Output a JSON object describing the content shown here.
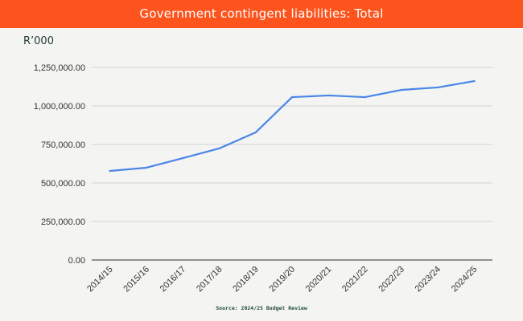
{
  "header": {
    "title": "Government contingent liabilities: Total"
  },
  "unit_label": "R’000",
  "source": "Source: 2024/25 Budget Review",
  "colors": {
    "header_bg": "#fd541e",
    "line": "#4a86e8",
    "grid": "#dddddd",
    "background": "#f4f4f2"
  },
  "chart_data": {
    "type": "line",
    "title": "Government contingent liabilities: Total",
    "ylabel": "R’000",
    "xlabel": "",
    "categories": [
      "2014/15",
      "2015/16",
      "2016/17",
      "2017/18",
      "2018/19",
      "2019/20",
      "2020/21",
      "2021/22",
      "2022/23",
      "2023/24",
      "2024/25"
    ],
    "series": [
      {
        "name": "Total",
        "values": [
          578000,
          599000,
          661000,
          724000,
          828000,
          1057000,
          1068000,
          1057000,
          1104000,
          1120000,
          1161000
        ]
      }
    ],
    "ylim": [
      0,
      1250000
    ],
    "yticks": [
      0,
      250000,
      500000,
      750000,
      1000000,
      1250000
    ],
    "ytick_labels": [
      "0.00",
      "250,000.00",
      "500,000.00",
      "750,000.00",
      "1,000,000.00",
      "1,250,000.00"
    ],
    "grid": true,
    "legend": "none"
  }
}
